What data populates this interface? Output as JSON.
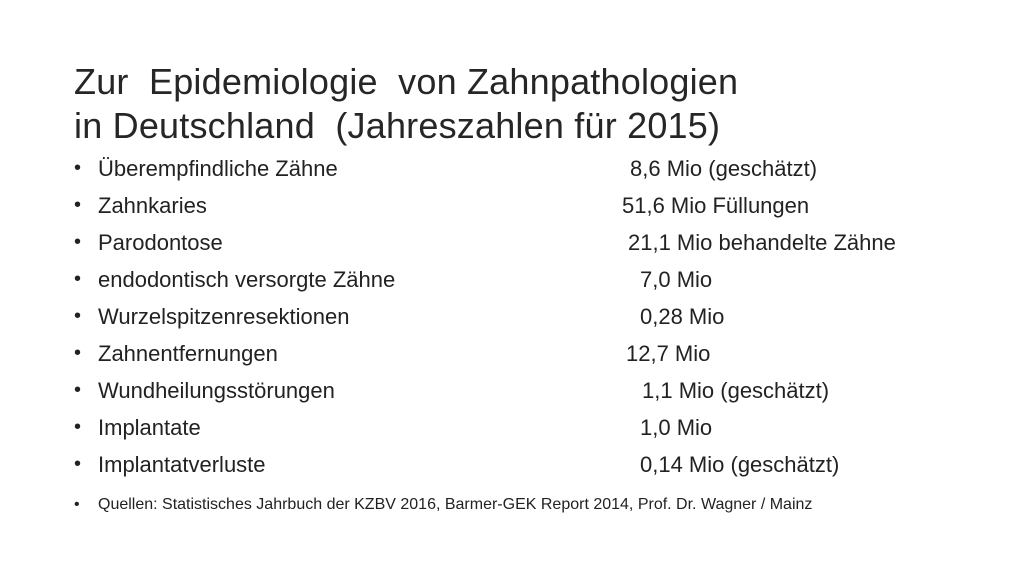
{
  "slide": {
    "title_line1": "Zur  Epidemiologie  von Zahnpathologien",
    "title_line2": "in Deutschland  (Jahreszahlen für 2015)",
    "bullet_symbol": "•",
    "items": [
      {
        "label": "Überempfindliche Zähne",
        "value": "8,6 Mio (geschätzt)"
      },
      {
        "label": "Zahnkaries",
        "value": "51,6 Mio Füllungen"
      },
      {
        "label": "Parodontose",
        "value": "21,1 Mio behandelte Zähne"
      },
      {
        "label": "endodontisch versorgte Zähne",
        "value": "7,0 Mio"
      },
      {
        "label": "Wurzelspitzenresektionen",
        "value": "0,28 Mio"
      },
      {
        "label": "Zahnentfernungen",
        "value": "12,7 Mio"
      },
      {
        "label": "Wundheilungsstörungen",
        "value": "1,1 Mio (geschätzt)"
      },
      {
        "label": "Implantate",
        "value": "1,0 Mio"
      },
      {
        "label": "Implantatverluste",
        "value": "0,14 Mio (geschätzt)"
      }
    ],
    "source": "Quellen: Statistisches Jahrbuch der KZBV 2016, Barmer-GEK Report 2014, Prof. Dr. Wagner / Mainz"
  }
}
